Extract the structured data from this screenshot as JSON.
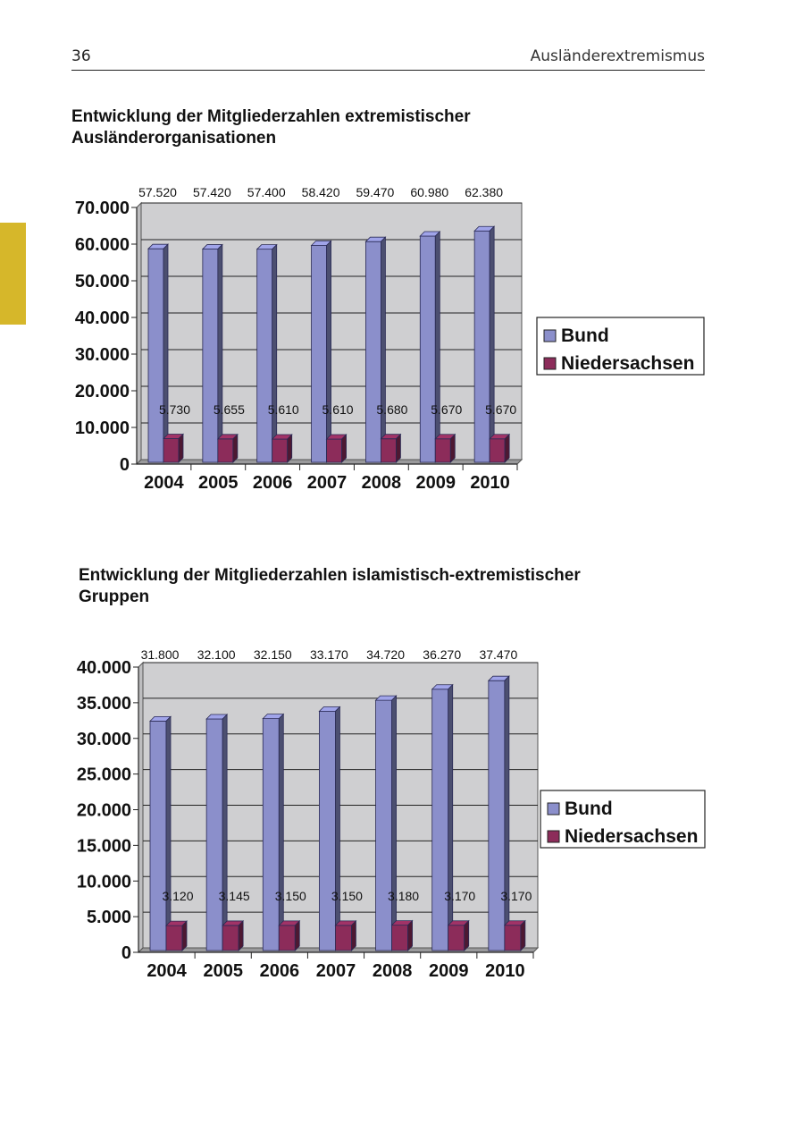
{
  "page": {
    "number": "36",
    "running_head": "Ausländerextremismus"
  },
  "colors": {
    "bund": "#8b8fcb",
    "niedersachsen": "#8c2c5a",
    "plot_background": "#cfcfd1",
    "side_tab": "#d6b72a"
  },
  "chart_data": [
    {
      "type": "bar",
      "style": "3d-clustered-column",
      "title": "Entwicklung der Mitgliederzahlen extremistischer Ausländerorganisationen",
      "categories": [
        "2004",
        "2005",
        "2006",
        "2007",
        "2008",
        "2009",
        "2010"
      ],
      "series": [
        {
          "name": "Bund",
          "values": [
            57520,
            57420,
            57400,
            58420,
            59470,
            60980,
            62380
          ],
          "labels": [
            "57.520",
            "57.420",
            "57.400",
            "58.420",
            "59.470",
            "60.980",
            "62.380"
          ]
        },
        {
          "name": "Niedersachsen",
          "values": [
            5730,
            5655,
            5610,
            5610,
            5680,
            5670,
            5670
          ],
          "labels": [
            "5.730",
            "5.655",
            "5.610",
            "5.610",
            "5.680",
            "5.670",
            "5.670"
          ]
        }
      ],
      "ylim": [
        0,
        70000
      ],
      "yticks": [
        "0",
        "10.000",
        "20.000",
        "30.000",
        "40.000",
        "50.000",
        "60.000",
        "70.000"
      ],
      "grid": true,
      "legend": "right"
    },
    {
      "type": "bar",
      "style": "3d-clustered-column",
      "title": "Entwicklung der Mitgliederzahlen islamistisch-extremistischer Gruppen",
      "categories": [
        "2004",
        "2005",
        "2006",
        "2007",
        "2008",
        "2009",
        "2010"
      ],
      "series": [
        {
          "name": "Bund",
          "values": [
            31800,
            32100,
            32150,
            33170,
            34720,
            36270,
            37470
          ],
          "labels": [
            "31.800",
            "32.100",
            "32.150",
            "33.170",
            "34.720",
            "36.270",
            "37.470"
          ]
        },
        {
          "name": "Niedersachsen",
          "values": [
            3120,
            3145,
            3150,
            3150,
            3180,
            3170,
            3170
          ],
          "labels": [
            "3.120",
            "3.145",
            "3.150",
            "3.150",
            "3.180",
            "3.170",
            "3.170"
          ]
        }
      ],
      "ylim": [
        0,
        40000
      ],
      "yticks": [
        "0",
        "5.000",
        "10.000",
        "15.000",
        "20.000",
        "25.000",
        "30.000",
        "35.000",
        "40.000"
      ],
      "grid": true,
      "legend": "right"
    }
  ]
}
